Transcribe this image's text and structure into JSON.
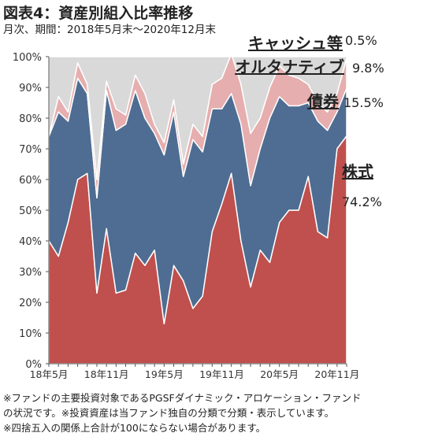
{
  "title": "図表4：資産別組入比率推移",
  "subtitle": "月次、期間：2018年5月末～2020年12月末",
  "notes": [
    "※ファンドの主要投資対象であるPGSFダイナミック・アロケーション・ファンド",
    "の状況です。※投資資産は当ファンド独自の分類で分類・表示しています。",
    "※四捨五入の関係上合計が100にならない場合があります。"
  ],
  "chart_data": {
    "type": "area",
    "stacked": true,
    "ylim": [
      0,
      100
    ],
    "yticks": [
      "0%",
      "10%",
      "20%",
      "30%",
      "40%",
      "50%",
      "60%",
      "70%",
      "80%",
      "90%",
      "100%"
    ],
    "x": [
      "18年5月",
      "18年6月",
      "18年7月",
      "18年8月",
      "18年9月",
      "18年10月",
      "18年11月",
      "18年12月",
      "19年1月",
      "19年2月",
      "19年3月",
      "19年4月",
      "19年5月",
      "19年6月",
      "19年7月",
      "19年8月",
      "19年9月",
      "19年10月",
      "19年11月",
      "19年12月",
      "20年1月",
      "20年2月",
      "20年3月",
      "20年4月",
      "20年5月",
      "20年6月",
      "20年7月",
      "20年8月",
      "20年9月",
      "20年10月",
      "20年11月",
      "20年12月"
    ],
    "xtick_labels": [
      "18年5月",
      "18年11月",
      "19年5月",
      "19年11月",
      "20年5月",
      "20年11月"
    ],
    "series": [
      {
        "name": "株式",
        "color": "#c0504d",
        "values": [
          40,
          35,
          46,
          60,
          62,
          23,
          44,
          23,
          24,
          36,
          32,
          37,
          13,
          32,
          27,
          18,
          22,
          43,
          52,
          62,
          40,
          25,
          37,
          33,
          46,
          50,
          50,
          61,
          43,
          41,
          70,
          74.2
        ]
      },
      {
        "name": "債券",
        "color": "#4f6d92",
        "values": [
          34,
          47,
          33,
          33,
          26,
          31,
          45,
          53,
          54,
          53,
          48,
          38,
          55,
          50,
          34,
          55,
          47,
          40,
          31,
          26,
          38,
          33,
          33,
          47,
          41,
          34,
          34,
          24,
          36,
          35,
          12,
          15.5
        ]
      },
      {
        "name": "オルタナティブ",
        "color": "#e6aeae",
        "values": [
          0,
          5,
          3,
          5,
          3,
          6,
          3,
          7,
          3,
          5,
          8,
          3,
          4,
          4,
          4,
          5,
          5,
          8,
          10,
          13,
          13,
          17,
          10,
          10,
          10,
          10,
          9,
          6,
          6,
          6,
          6,
          9.8
        ]
      },
      {
        "name": "キャッシュ等",
        "color": "#d9d9d9",
        "values": [
          26,
          13,
          18,
          2,
          9,
          40,
          8,
          17,
          19,
          6,
          12,
          22,
          28,
          14,
          35,
          22,
          26,
          9,
          7,
          -1,
          9,
          25,
          20,
          10,
          3,
          6,
          7,
          9,
          15,
          18,
          12,
          0.5
        ]
      }
    ],
    "callouts": [
      {
        "label": "キャッシュ等",
        "value": "0.5%"
      },
      {
        "label": "オルタナティブ",
        "value": "9.8%"
      },
      {
        "label": "債券",
        "value": "15.5%"
      },
      {
        "label": "株式",
        "value": "74.2%"
      }
    ]
  }
}
